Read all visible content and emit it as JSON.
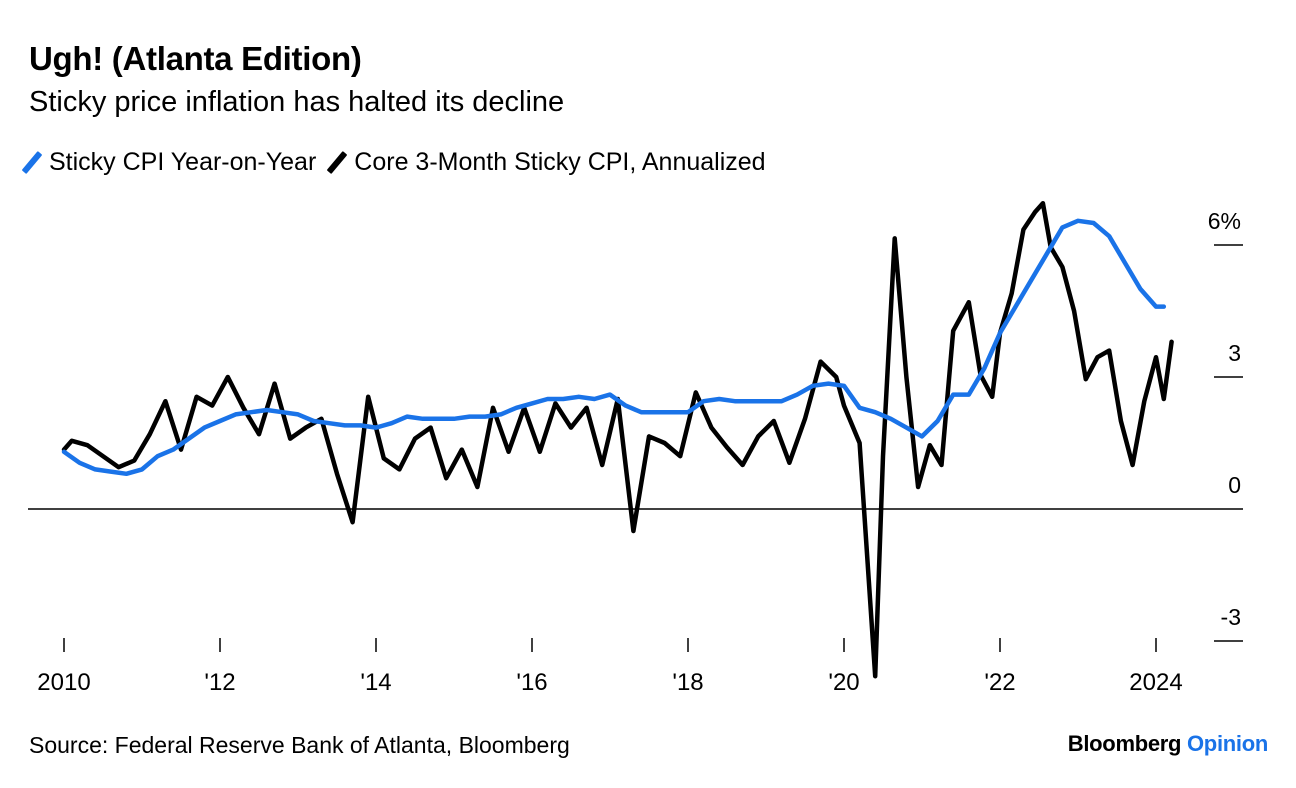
{
  "title": "Ugh! (Atlanta Edition)",
  "subtitle": "Sticky price inflation has halted its decline",
  "legend": [
    {
      "label": "Sticky CPI Year-on-Year",
      "color": "#1a73e8"
    },
    {
      "label": "Core 3-Month Sticky CPI, Annualized",
      "color": "#000000"
    }
  ],
  "source": "Source: Federal Reserve Bank of Atlanta, Bloomberg",
  "brand": {
    "name": "Bloomberg",
    "suffix": "Opinion"
  },
  "chart_data": {
    "type": "line",
    "title": "Ugh! (Atlanta Edition)",
    "subtitle": "Sticky price inflation has halted its decline",
    "ylim": [
      -4,
      7
    ],
    "xlim": [
      2009.8,
      2025.2
    ],
    "y_ticks": [
      {
        "value": 6,
        "label": "6%"
      },
      {
        "value": 3,
        "label": "3"
      },
      {
        "value": 0,
        "label": "0"
      },
      {
        "value": -3,
        "label": "-3"
      }
    ],
    "x_ticks": [
      {
        "value": 2010,
        "label": "2010"
      },
      {
        "value": 2012,
        "label": "'12"
      },
      {
        "value": 2014,
        "label": "'14"
      },
      {
        "value": 2016,
        "label": "'16"
      },
      {
        "value": 2018,
        "label": "'18"
      },
      {
        "value": 2020,
        "label": "'20"
      },
      {
        "value": 2022,
        "label": "'22"
      },
      {
        "value": 2024,
        "label": "2024"
      }
    ],
    "grid": false,
    "legend_position": "top-left",
    "series": [
      {
        "name": "Sticky CPI Year-on-Year",
        "color": "#1a73e8",
        "points": [
          [
            2010.0,
            1.3
          ],
          [
            2010.2,
            1.05
          ],
          [
            2010.4,
            0.9
          ],
          [
            2010.6,
            0.85
          ],
          [
            2010.8,
            0.8
          ],
          [
            2011.0,
            0.9
          ],
          [
            2011.2,
            1.2
          ],
          [
            2011.4,
            1.35
          ],
          [
            2011.6,
            1.6
          ],
          [
            2011.8,
            1.85
          ],
          [
            2012.0,
            2.0
          ],
          [
            2012.2,
            2.15
          ],
          [
            2012.4,
            2.2
          ],
          [
            2012.6,
            2.25
          ],
          [
            2012.8,
            2.2
          ],
          [
            2013.0,
            2.15
          ],
          [
            2013.2,
            2.0
          ],
          [
            2013.4,
            1.95
          ],
          [
            2013.6,
            1.9
          ],
          [
            2013.8,
            1.9
          ],
          [
            2014.0,
            1.85
          ],
          [
            2014.2,
            1.95
          ],
          [
            2014.4,
            2.1
          ],
          [
            2014.6,
            2.05
          ],
          [
            2014.8,
            2.05
          ],
          [
            2015.0,
            2.05
          ],
          [
            2015.2,
            2.1
          ],
          [
            2015.4,
            2.1
          ],
          [
            2015.6,
            2.15
          ],
          [
            2015.8,
            2.3
          ],
          [
            2016.0,
            2.4
          ],
          [
            2016.2,
            2.5
          ],
          [
            2016.4,
            2.5
          ],
          [
            2016.6,
            2.55
          ],
          [
            2016.8,
            2.5
          ],
          [
            2017.0,
            2.6
          ],
          [
            2017.2,
            2.35
          ],
          [
            2017.4,
            2.2
          ],
          [
            2017.6,
            2.2
          ],
          [
            2017.8,
            2.2
          ],
          [
            2018.0,
            2.2
          ],
          [
            2018.2,
            2.45
          ],
          [
            2018.4,
            2.5
          ],
          [
            2018.6,
            2.45
          ],
          [
            2018.8,
            2.45
          ],
          [
            2019.0,
            2.45
          ],
          [
            2019.2,
            2.45
          ],
          [
            2019.4,
            2.6
          ],
          [
            2019.6,
            2.8
          ],
          [
            2019.8,
            2.85
          ],
          [
            2020.0,
            2.8
          ],
          [
            2020.2,
            2.3
          ],
          [
            2020.4,
            2.2
          ],
          [
            2020.6,
            2.05
          ],
          [
            2020.8,
            1.85
          ],
          [
            2021.0,
            1.65
          ],
          [
            2021.2,
            2.0
          ],
          [
            2021.4,
            2.6
          ],
          [
            2021.6,
            2.6
          ],
          [
            2021.8,
            3.2
          ],
          [
            2022.0,
            4.0
          ],
          [
            2022.2,
            4.6
          ],
          [
            2022.4,
            5.2
          ],
          [
            2022.6,
            5.8
          ],
          [
            2022.8,
            6.4
          ],
          [
            2023.0,
            6.55
          ],
          [
            2023.2,
            6.5
          ],
          [
            2023.4,
            6.2
          ],
          [
            2023.6,
            5.6
          ],
          [
            2023.8,
            5.0
          ],
          [
            2024.0,
            4.6
          ],
          [
            2024.1,
            4.6
          ]
        ]
      },
      {
        "name": "Core 3-Month Sticky CPI, Annualized",
        "color": "#000000",
        "points": [
          [
            2010.0,
            1.35
          ],
          [
            2010.1,
            1.55
          ],
          [
            2010.3,
            1.45
          ],
          [
            2010.5,
            1.2
          ],
          [
            2010.7,
            0.95
          ],
          [
            2010.9,
            1.1
          ],
          [
            2011.1,
            1.7
          ],
          [
            2011.3,
            2.45
          ],
          [
            2011.5,
            1.35
          ],
          [
            2011.7,
            2.55
          ],
          [
            2011.9,
            2.35
          ],
          [
            2012.1,
            3.0
          ],
          [
            2012.3,
            2.3
          ],
          [
            2012.5,
            1.7
          ],
          [
            2012.7,
            2.85
          ],
          [
            2012.9,
            1.6
          ],
          [
            2013.1,
            1.85
          ],
          [
            2013.3,
            2.05
          ],
          [
            2013.5,
            0.8
          ],
          [
            2013.7,
            -0.3
          ],
          [
            2013.9,
            2.55
          ],
          [
            2014.1,
            1.15
          ],
          [
            2014.3,
            0.9
          ],
          [
            2014.5,
            1.6
          ],
          [
            2014.7,
            1.85
          ],
          [
            2014.9,
            0.7
          ],
          [
            2015.1,
            1.35
          ],
          [
            2015.3,
            0.5
          ],
          [
            2015.5,
            2.3
          ],
          [
            2015.7,
            1.3
          ],
          [
            2015.9,
            2.3
          ],
          [
            2016.1,
            1.3
          ],
          [
            2016.3,
            2.4
          ],
          [
            2016.5,
            1.85
          ],
          [
            2016.7,
            2.3
          ],
          [
            2016.9,
            1.0
          ],
          [
            2017.1,
            2.5
          ],
          [
            2017.3,
            -0.5
          ],
          [
            2017.5,
            1.65
          ],
          [
            2017.7,
            1.5
          ],
          [
            2017.9,
            1.2
          ],
          [
            2018.1,
            2.65
          ],
          [
            2018.3,
            1.85
          ],
          [
            2018.5,
            1.4
          ],
          [
            2018.7,
            1.0
          ],
          [
            2018.9,
            1.65
          ],
          [
            2019.1,
            2.0
          ],
          [
            2019.3,
            1.05
          ],
          [
            2019.5,
            2.05
          ],
          [
            2019.7,
            3.35
          ],
          [
            2019.9,
            3.0
          ],
          [
            2020.0,
            2.35
          ],
          [
            2020.2,
            1.5
          ],
          [
            2020.4,
            -3.8
          ],
          [
            2020.5,
            1.2
          ],
          [
            2020.65,
            6.15
          ],
          [
            2020.8,
            3.0
          ],
          [
            2020.95,
            0.5
          ],
          [
            2021.1,
            1.45
          ],
          [
            2021.25,
            1.0
          ],
          [
            2021.4,
            4.05
          ],
          [
            2021.6,
            4.7
          ],
          [
            2021.75,
            3.05
          ],
          [
            2021.9,
            2.55
          ],
          [
            2022.0,
            4.0
          ],
          [
            2022.15,
            4.9
          ],
          [
            2022.3,
            6.35
          ],
          [
            2022.45,
            6.75
          ],
          [
            2022.55,
            6.95
          ],
          [
            2022.65,
            5.95
          ],
          [
            2022.8,
            5.5
          ],
          [
            2022.95,
            4.5
          ],
          [
            2023.1,
            2.95
          ],
          [
            2023.25,
            3.45
          ],
          [
            2023.4,
            3.6
          ],
          [
            2023.55,
            2.0
          ],
          [
            2023.7,
            1.0
          ],
          [
            2023.85,
            2.45
          ],
          [
            2024.0,
            3.45
          ],
          [
            2024.1,
            2.5
          ],
          [
            2024.2,
            3.8
          ]
        ]
      }
    ]
  }
}
